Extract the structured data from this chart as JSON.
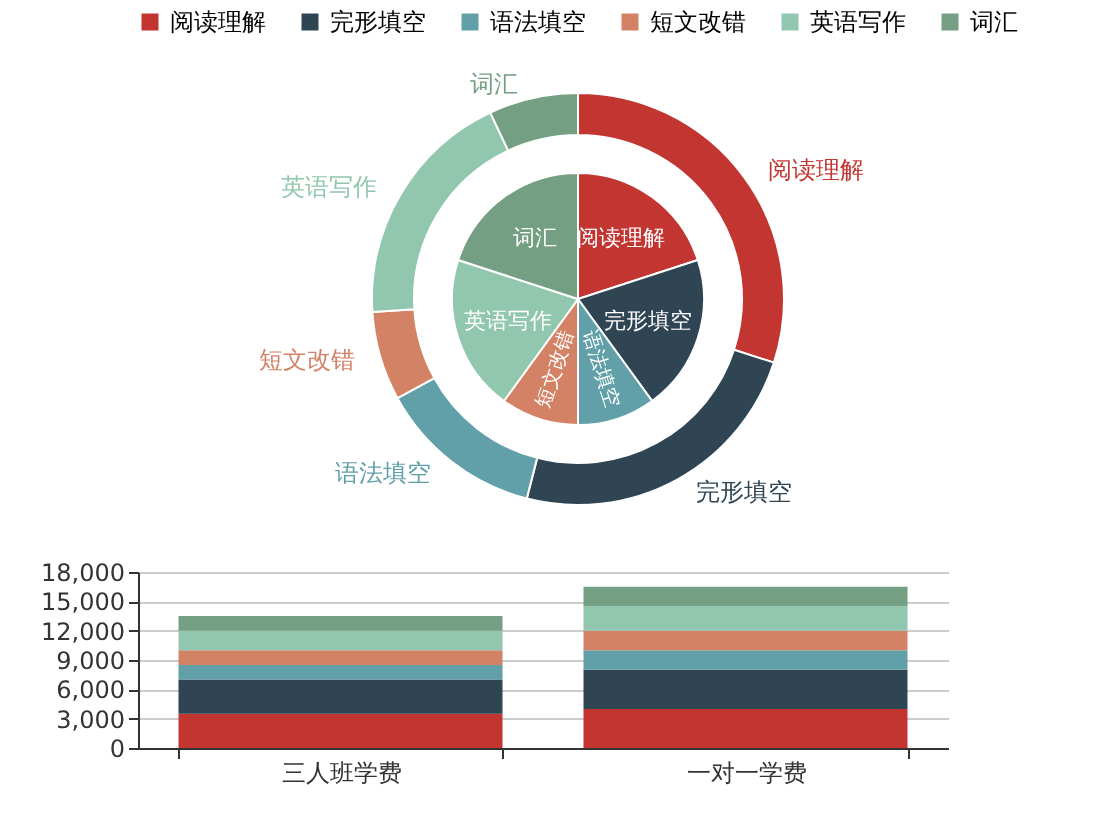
{
  "chart_data": [
    {
      "type": "pie",
      "categories": [
        "阅读理解",
        "完形填空",
        "语法填空",
        "短文改错",
        "英语写作",
        "词汇"
      ],
      "legend": "top",
      "series": [
        {
          "type": "pie",
          "values": [
            20,
            20,
            10,
            10,
            20,
            20
          ],
          "colors": [
            "#c23531",
            "#2f4554",
            "#61a0a8",
            "#d48265",
            "#91c7ae",
            "#749f83"
          ]
        },
        {
          "type": "donut",
          "values": [
            30,
            24,
            13,
            7,
            19,
            7
          ],
          "colors": [
            "#c23531",
            "#2f4554",
            "#61a0a8",
            "#d48265",
            "#91c7ae",
            "#749f83"
          ]
        }
      ]
    },
    {
      "type": "bar",
      "stacked": true,
      "legend": "top",
      "categories": [
        "三人班学费",
        "一对一学费"
      ],
      "ylim": [
        0,
        18000
      ],
      "yticks": [
        {
          "value": 0,
          "label": "0"
        },
        {
          "value": 3000,
          "label": "3,000"
        },
        {
          "value": 6000,
          "label": "6,000"
        },
        {
          "value": 9000,
          "label": "9,000"
        },
        {
          "value": 12000,
          "label": "12,000"
        },
        {
          "value": 15000,
          "label": "15,000"
        },
        {
          "value": 18000,
          "label": "18,000"
        }
      ],
      "grid": "y",
      "series": [
        {
          "name": "阅读理解",
          "color": "#c23531",
          "values": [
            3500,
            4000
          ]
        },
        {
          "name": "完形填空",
          "color": "#2f4554",
          "values": [
            3500,
            4000
          ]
        },
        {
          "name": "语法填空",
          "color": "#61a0a8",
          "values": [
            1500,
            2000
          ]
        },
        {
          "name": "短文改错",
          "color": "#d48265",
          "values": [
            1500,
            2000
          ]
        },
        {
          "name": "英语写作",
          "color": "#91c7ae",
          "values": [
            2000,
            2500
          ]
        },
        {
          "name": "词汇",
          "color": "#749f83",
          "values": [
            1500,
            2000
          ]
        }
      ]
    }
  ]
}
